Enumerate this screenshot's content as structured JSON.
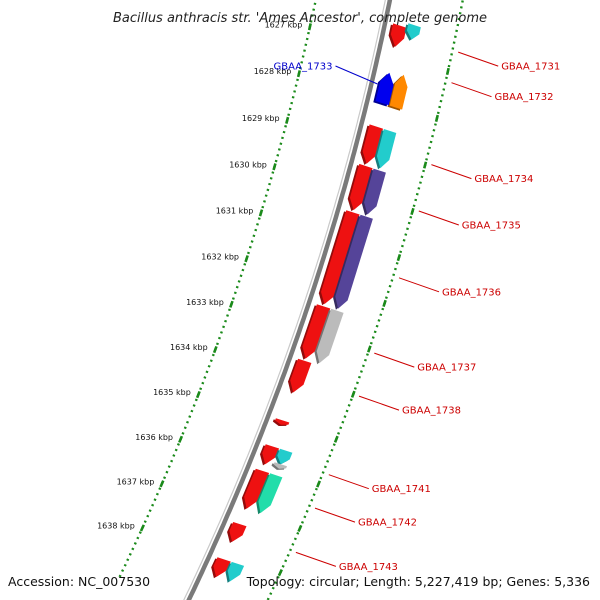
{
  "title": "Bacillus anthracis str. 'Ames Ancestor', complete genome",
  "accession": "Accession: NC_007530",
  "topology": "Topology: circular; Length: 5,227,419 bp; Genes: 5,336",
  "colors": {
    "backbone": "#7a7a7a",
    "ruler": "#1a8a1a",
    "label_forward": "#cc0000",
    "label_reverse": "#0000cc",
    "red": "#ee1111",
    "cyan": "#22cccc",
    "purple": "#554499",
    "grey": "#bbbbbb",
    "mint": "#22ddaa",
    "orange": "#ff8800",
    "blue": "#0000ee"
  },
  "ticks": [
    {
      "kbp": 1627,
      "label": "1627 kbp"
    },
    {
      "kbp": 1628,
      "label": "1628 kbp"
    },
    {
      "kbp": 1629,
      "label": "1629 kbp"
    },
    {
      "kbp": 1630,
      "label": "1630 kbp"
    },
    {
      "kbp": 1631,
      "label": "1631 kbp"
    },
    {
      "kbp": 1632,
      "label": "1632 kbp"
    },
    {
      "kbp": 1633,
      "label": "1633 kbp"
    },
    {
      "kbp": 1634,
      "label": "1634 kbp"
    },
    {
      "kbp": 1635,
      "label": "1635 kbp"
    },
    {
      "kbp": 1636,
      "label": "1636 kbp"
    },
    {
      "kbp": 1637,
      "label": "1637 kbp"
    },
    {
      "kbp": 1638,
      "label": "1638 kbp"
    }
  ],
  "features": [
    {
      "name": "gene-1731-red",
      "strand": "-",
      "track": "inner",
      "start": 1626.4,
      "end": 1626.85,
      "color": "red"
    },
    {
      "name": "gene-1731-cog",
      "strand": "-",
      "track": "outer",
      "start": 1626.3,
      "end": 1626.6,
      "color": "cyan"
    },
    {
      "name": "gene-1733-orange",
      "strand": "+",
      "track": "outer",
      "start": 1627.35,
      "end": 1628.05,
      "color": "orange"
    },
    {
      "name": "gene-1733-blue",
      "strand": "+",
      "track": "inner",
      "start": 1627.4,
      "end": 1628.05,
      "color": "blue"
    },
    {
      "name": "gene-1734-red",
      "strand": "-",
      "track": "inner",
      "start": 1628.55,
      "end": 1629.35,
      "color": "red"
    },
    {
      "name": "gene-1734-cog",
      "strand": "-",
      "track": "outer",
      "start": 1628.55,
      "end": 1629.35,
      "color": "cyan"
    },
    {
      "name": "gene-1735-red",
      "strand": "-",
      "track": "inner",
      "start": 1629.4,
      "end": 1630.35,
      "color": "red"
    },
    {
      "name": "gene-1735-cog",
      "strand": "-",
      "track": "outer",
      "start": 1629.4,
      "end": 1630.35,
      "color": "purple"
    },
    {
      "name": "gene-1736-red",
      "strand": "-",
      "track": "inner",
      "start": 1630.4,
      "end": 1632.4,
      "color": "red"
    },
    {
      "name": "gene-1736-cog",
      "strand": "-",
      "track": "outer",
      "start": 1630.4,
      "end": 1632.4,
      "color": "purple"
    },
    {
      "name": "gene-1737-red",
      "strand": "-",
      "track": "inner",
      "start": 1632.45,
      "end": 1633.6,
      "color": "red"
    },
    {
      "name": "gene-1737-cog",
      "strand": "-",
      "track": "outer",
      "start": 1632.45,
      "end": 1633.6,
      "color": "grey"
    },
    {
      "name": "gene-1738-red",
      "strand": "-",
      "track": "inner",
      "start": 1633.65,
      "end": 1634.35,
      "color": "red"
    },
    {
      "name": "gene-1740-red",
      "strand": "-",
      "track": "inner",
      "start": 1634.97,
      "end": 1635.07,
      "color": "red"
    },
    {
      "name": "gene-1741-red",
      "strand": "-",
      "track": "inner",
      "start": 1635.55,
      "end": 1635.95,
      "color": "red"
    },
    {
      "name": "gene-1741-cog",
      "strand": "-",
      "track": "outer",
      "start": 1635.55,
      "end": 1635.85,
      "color": "cyan"
    },
    {
      "name": "gene-1741-cog2",
      "strand": "-",
      "track": "outer",
      "start": 1635.85,
      "end": 1635.95,
      "color": "grey"
    },
    {
      "name": "gene-1742-red",
      "strand": "-",
      "track": "inner",
      "start": 1636.1,
      "end": 1636.95,
      "color": "red"
    },
    {
      "name": "gene-1742-cog",
      "strand": "-",
      "track": "outer",
      "start": 1636.1,
      "end": 1636.95,
      "color": "mint"
    },
    {
      "name": "gene-1743-red",
      "strand": "-",
      "track": "inner",
      "start": 1637.3,
      "end": 1637.7,
      "color": "red"
    },
    {
      "name": "gene-1744-red",
      "strand": "-",
      "track": "inner",
      "start": 1638.1,
      "end": 1638.5,
      "color": "red"
    },
    {
      "name": "gene-1744-cog",
      "strand": "-",
      "track": "outer",
      "start": 1638.1,
      "end": 1638.5,
      "color": "cyan"
    }
  ],
  "labels": [
    {
      "text": "GBAA_1731",
      "kbp": 1626.55,
      "side": "right",
      "color": "label_forward"
    },
    {
      "text": "GBAA_1732",
      "kbp": 1627.2,
      "side": "right",
      "color": "label_forward"
    },
    {
      "text": "GBAA_1733",
      "kbp": 1627.7,
      "side": "left",
      "color": "label_reverse"
    },
    {
      "text": "GBAA_1734",
      "kbp": 1628.95,
      "side": "right",
      "color": "label_forward"
    },
    {
      "text": "GBAA_1735",
      "kbp": 1629.95,
      "side": "right",
      "color": "label_forward"
    },
    {
      "text": "GBAA_1736",
      "kbp": 1631.4,
      "side": "right",
      "color": "label_forward"
    },
    {
      "text": "GBAA_1737",
      "kbp": 1633.05,
      "side": "right",
      "color": "label_forward"
    },
    {
      "text": "GBAA_1738",
      "kbp": 1634.0,
      "side": "right",
      "color": "label_forward"
    },
    {
      "text": "GBAA_1741",
      "kbp": 1635.75,
      "side": "right",
      "color": "label_forward"
    },
    {
      "text": "GBAA_1742",
      "kbp": 1636.5,
      "side": "right",
      "color": "label_forward"
    },
    {
      "text": "GBAA_1743",
      "kbp": 1637.5,
      "side": "right",
      "color": "label_forward"
    }
  ]
}
